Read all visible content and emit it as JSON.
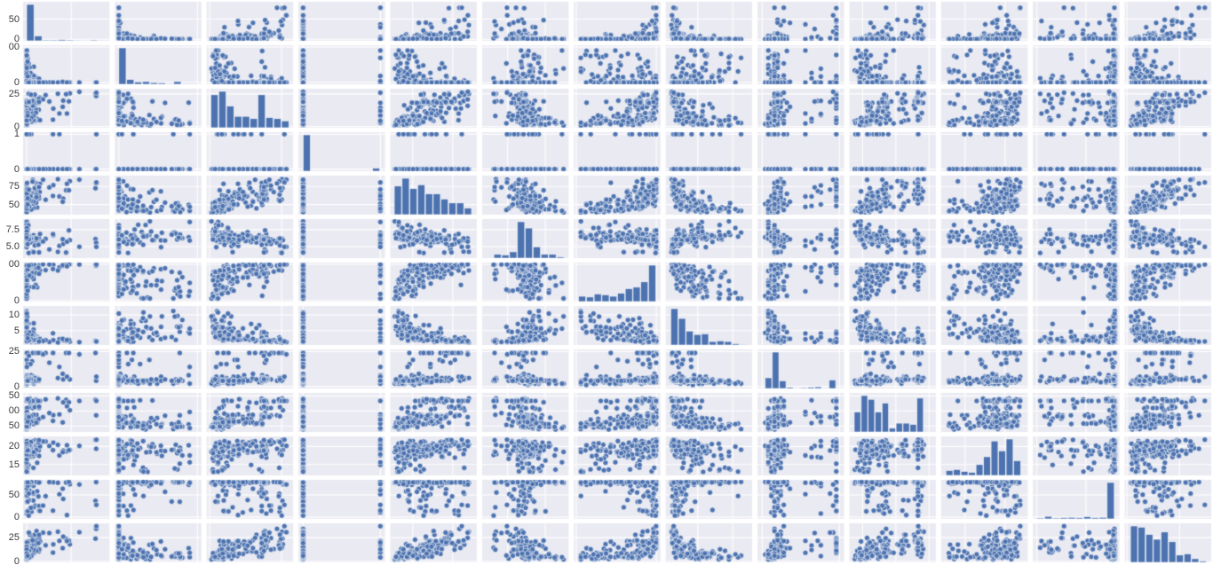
{
  "page": {
    "background": "#ffffff",
    "description": "Scatterplot matrix (pairplot) of 13 numeric variables with histograms on the diagonal"
  },
  "chart_data": {
    "type": "scatter",
    "subtype": "scatter-matrix-pairplot",
    "title": "",
    "xlabel": "",
    "ylabel": "",
    "legend": "none",
    "grid": true,
    "n_vars": 13,
    "n_samples": 160,
    "seed": 42,
    "point_color": "#4c72b0",
    "point_edge_color": "rgba(255,255,255,0.65)",
    "cell_bg": "#eaeaf2",
    "grid_line_color": "#ffffff",
    "tick_label_color": "#3b3b3b",
    "diagonal": "histogram",
    "variables": [
      {
        "id": "var-01",
        "range": [
          -4,
          93
        ],
        "loading": 0.75,
        "discrete": false,
        "quantiles": [
          0.006,
          0.04,
          0.1,
          0.2,
          0.26,
          0.45,
          1.2,
          3.7,
          8,
          15,
          89
        ],
        "ticks": [
          {
            "text": "50",
            "value": 50
          },
          {
            "text": "0",
            "value": 0
          }
        ]
      },
      {
        "id": "var-02",
        "range": [
          -5,
          105
        ],
        "loading": -0.6,
        "discrete": false,
        "quantiles": [
          0,
          0,
          0,
          0,
          0,
          0,
          0,
          12.5,
          20,
          45,
          100
        ],
        "ticks": [
          {
            "text": "00",
            "value": 100
          },
          {
            "text": "0",
            "value": 0
          }
        ]
      },
      {
        "id": "var-03",
        "range": [
          -1,
          29
        ],
        "loading": 0.8,
        "discrete": false,
        "quantiles": [
          0.46,
          2.2,
          3.8,
          5.1,
          6.6,
          9.7,
          11.9,
          18.1,
          18.1,
          19.9,
          27.7
        ],
        "ticks": [
          {
            "text": "25",
            "value": 25
          },
          {
            "text": "0",
            "value": 0
          }
        ]
      },
      {
        "id": "var-04",
        "range": [
          -0.06,
          1.06
        ],
        "loading": 0.05,
        "discrete": true,
        "quantiles": [
          0,
          0,
          0,
          0,
          0,
          0,
          0,
          0,
          0,
          0,
          1
        ],
        "ticks": [
          {
            "text": "1",
            "value": 1
          },
          {
            "text": "0",
            "value": 0
          }
        ]
      },
      {
        "id": "var-05",
        "range": [
          0.36,
          0.9
        ],
        "loading": 0.87,
        "discrete": false,
        "quantiles": [
          0.385,
          0.427,
          0.449,
          0.477,
          0.507,
          0.538,
          0.564,
          0.605,
          0.655,
          0.713,
          0.871
        ],
        "ticks": [
          {
            "text": "75",
            "value": 0.75
          },
          {
            "text": "50",
            "value": 0.5
          }
        ]
      },
      {
        "id": "var-06",
        "range": [
          3.3,
          9.05
        ],
        "loading": -0.55,
        "discrete": false,
        "quantiles": [
          3.56,
          5.59,
          5.88,
          6.0,
          6.11,
          6.21,
          6.33,
          6.5,
          6.75,
          7.15,
          8.78
        ],
        "ticks": [
          {
            "text": "7.5",
            "value": 7.5
          },
          {
            "text": "5.0",
            "value": 5.0
          }
        ]
      },
      {
        "id": "var-07",
        "range": [
          -3,
          105
        ],
        "loading": 0.78,
        "discrete": false,
        "quantiles": [
          2.9,
          26.9,
          42.4,
          53.7,
          65.4,
          77.5,
          85.9,
          91.7,
          95.6,
          98.8,
          100
        ],
        "ticks": [
          {
            "text": "00",
            "value": 100
          },
          {
            "text": "0",
            "value": 0
          }
        ]
      },
      {
        "id": "var-08",
        "range": [
          0.4,
          12.8
        ],
        "loading": -0.82,
        "discrete": false,
        "quantiles": [
          1.13,
          1.83,
          2.1,
          2.38,
          2.8,
          3.21,
          3.88,
          4.5,
          5.23,
          6.82,
          12.13
        ],
        "ticks": [
          {
            "text": "10",
            "value": 10
          },
          {
            "text": "5",
            "value": 5
          }
        ]
      },
      {
        "id": "var-09",
        "range": [
          -1.5,
          26.5
        ],
        "loading": 0.63,
        "discrete": true,
        "quantiles": [
          1,
          3,
          4,
          4,
          4,
          5,
          5,
          6,
          8,
          24,
          24
        ],
        "ticks": [
          {
            "text": "25",
            "value": 25
          },
          {
            "text": "0",
            "value": 0
          }
        ]
      },
      {
        "id": "var-10",
        "range": [
          150,
          800
        ],
        "loading": 0.72,
        "discrete": false,
        "quantiles": [
          187,
          233,
          276,
          289,
          307,
          330,
          398,
          437,
          666,
          666,
          711
        ],
        "ticks": [
          {
            "text": "50",
            "value": 750
          },
          {
            "text": "00",
            "value": 500
          },
          {
            "text": "50",
            "value": 250
          }
        ]
      },
      {
        "id": "var-11",
        "range": [
          12,
          22.8
        ],
        "loading": 0.45,
        "discrete": false,
        "quantiles": [
          12.6,
          14.75,
          16.9,
          17.8,
          18.5,
          19.05,
          19.7,
          20.2,
          20.2,
          20.9,
          22.0
        ],
        "ticks": [
          {
            "text": "20",
            "value": 20
          },
          {
            "text": "15",
            "value": 15
          }
        ]
      },
      {
        "id": "var-12",
        "range": [
          -20,
          420
        ],
        "loading": -0.42,
        "discrete": false,
        "quantiles": [
          0.32,
          83,
          232,
          364,
          384,
          390,
          392,
          395,
          396,
          396.5,
          396.9
        ],
        "ticks": [
          {
            "text": "50",
            "value": 250
          },
          {
            "text": "0",
            "value": 0
          }
        ]
      },
      {
        "id": "var-13",
        "range": [
          -1,
          40
        ],
        "loading": 0.85,
        "discrete": false,
        "quantiles": [
          1.73,
          4.7,
          6.29,
          7.77,
          9.53,
          11.36,
          13.33,
          15.62,
          18.06,
          23.03,
          37.97
        ],
        "ticks": [
          {
            "text": "25",
            "value": 25
          },
          {
            "text": "0",
            "value": 0
          }
        ]
      }
    ]
  }
}
